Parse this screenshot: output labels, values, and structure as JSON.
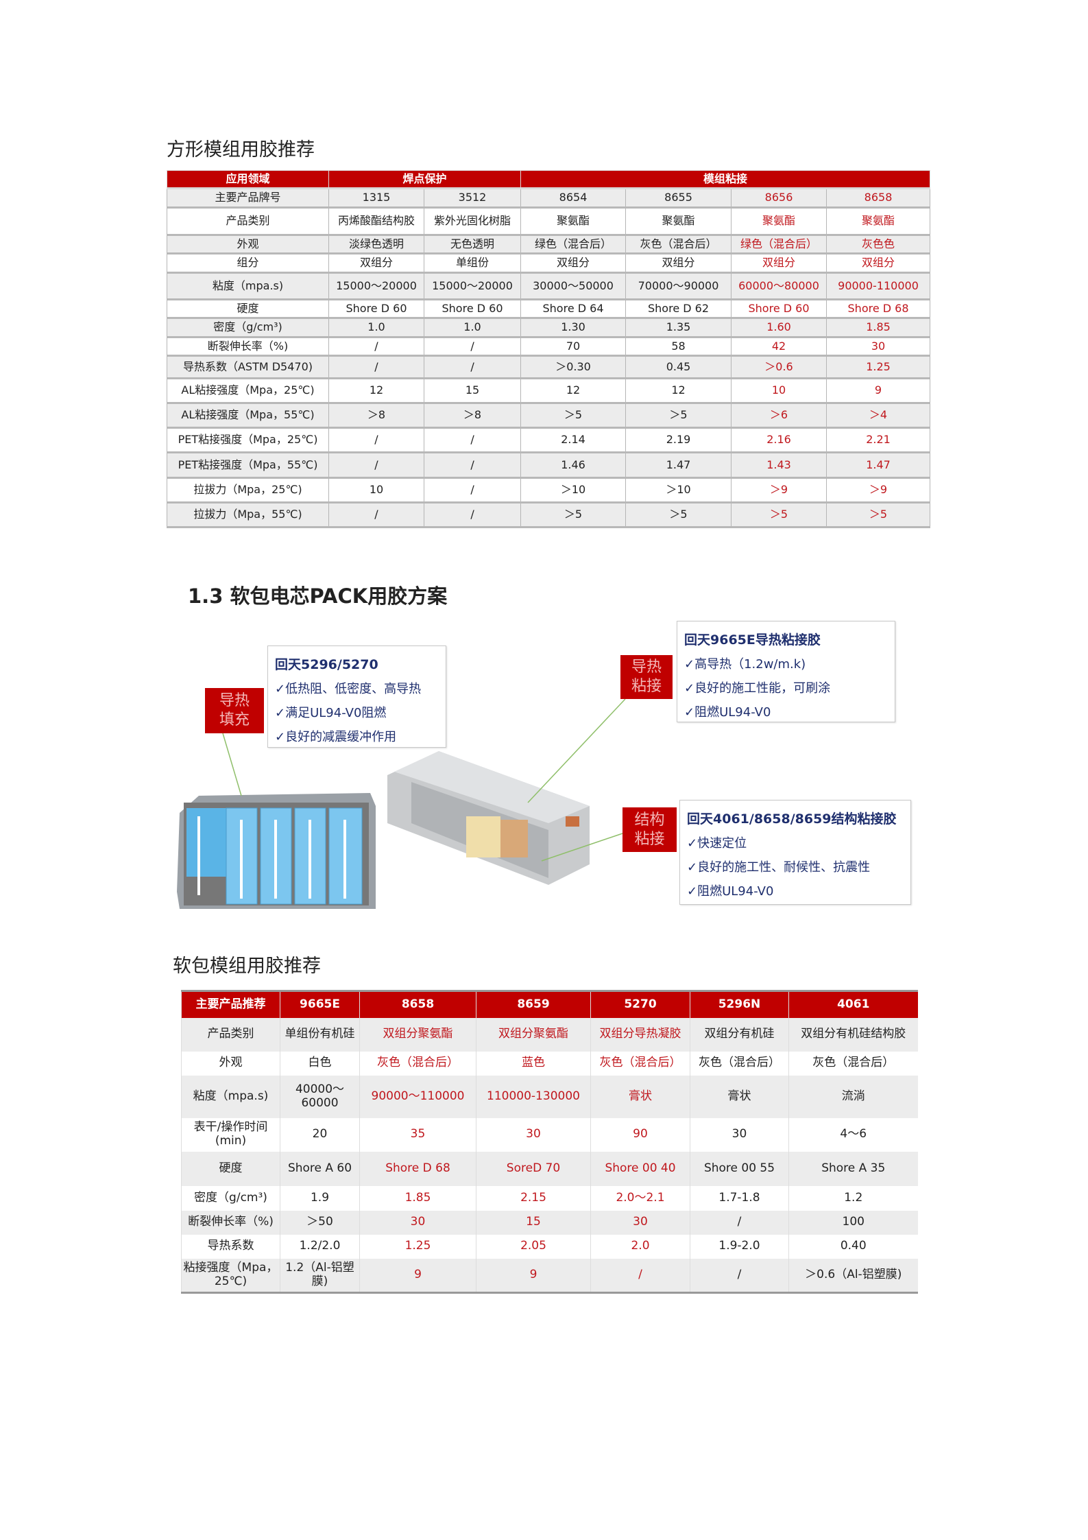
{
  "colors": {
    "brand_red": "#c00000",
    "highlight_text": "#c0171d",
    "callout_text": "#1f2f6e",
    "leader_line": "#8fbf6a"
  },
  "section1": {
    "title": "方形模组用胶推荐",
    "table": {
      "header": [
        {
          "label": "应用领域",
          "span": 1
        },
        {
          "label": "焊点保护",
          "span": 2
        },
        {
          "label": "模组粘接",
          "span": 4
        }
      ],
      "highlight_columns": [
        5,
        6
      ],
      "rows": [
        [
          "主要产品牌号",
          "1315",
          "3512",
          "8654",
          "8655",
          "8656",
          "8658"
        ],
        [
          "产品类别",
          "丙烯酸酯结构胶",
          "紫外光固化树脂",
          "聚氨酯",
          "聚氨酯",
          "聚氨酯",
          "聚氨酯"
        ],
        [
          "外观",
          "淡绿色透明",
          "无色透明",
          "绿色（混合后）",
          "灰色（混合后）",
          "绿色（混合后）",
          "灰色色"
        ],
        [
          "组分",
          "双组分",
          "单组份",
          "双组分",
          "双组分",
          "双组分",
          "双组分"
        ],
        [
          "粘度（mpa.s)",
          "15000～20000",
          "15000～20000",
          "30000～50000",
          "70000～90000",
          "60000～80000",
          "90000-110000"
        ],
        [
          "硬度",
          "Shore D 60",
          "Shore D 60",
          "Shore D 64",
          "Shore D 62",
          "Shore D 60",
          "Shore D 68"
        ],
        [
          "密度（g/cm³)",
          "1.0",
          "1.0",
          "1.30",
          "1.35",
          "1.60",
          "1.85"
        ],
        [
          "断裂伸长率（%)",
          "/",
          "/",
          "70",
          "58",
          "42",
          "30"
        ],
        [
          "导热系数（ASTM D5470)",
          "/",
          "/",
          "＞0.30",
          "0.45",
          "＞0.6",
          "1.25"
        ],
        [
          "AL粘接强度（Mpa，25℃)",
          "12",
          "15",
          "12",
          "12",
          "10",
          "9"
        ],
        [
          "AL粘接强度（Mpa，55℃)",
          "＞8",
          "＞8",
          "＞5",
          "＞5",
          "＞6",
          "＞4"
        ],
        [
          "PET粘接强度（Mpa，25℃)",
          "/",
          "/",
          "2.14",
          "2.19",
          "2.16",
          "2.21"
        ],
        [
          "PET粘接强度（Mpa，55℃)",
          "/",
          "/",
          "1.46",
          "1.47",
          "1.43",
          "1.47"
        ],
        [
          "拉拔力（Mpa，25℃)",
          "10",
          "/",
          "＞10",
          "＞10",
          "＞9",
          "＞9"
        ],
        [
          "拉拔力（Mpa，55℃)",
          "/",
          "/",
          "＞5",
          "＞5",
          "＞5",
          "＞5"
        ]
      ]
    }
  },
  "section2": {
    "title": "1.3 软包电芯PACK用胶方案",
    "tags": {
      "fill": "导热\n填充",
      "thermal_bond": "导热\n粘接",
      "structural": "结构\n粘接"
    },
    "callouts": [
      {
        "title": "回天5296/5270",
        "items": [
          "✓低热阻、低密度、高导热",
          "✓满足UL94-V0阻燃",
          "✓良好的减震缓冲作用"
        ]
      },
      {
        "title": "回天9665E导热粘接胶",
        "items": [
          "✓高导热（1.2w/m.k)",
          "✓良好的施工性能，可刷涂",
          "✓阻燃UL94-V0"
        ]
      },
      {
        "title": "回天4061/8658/8659结构粘接胶",
        "items": [
          "✓快速定位",
          "✓良好的施工性、耐候性、抗震性",
          "✓阻燃UL94-V0"
        ]
      }
    ]
  },
  "section3": {
    "title": "软包模组用胶推荐",
    "table": {
      "header": [
        "主要产品推荐",
        "9665E",
        "8658",
        "8659",
        "5270",
        "5296N",
        "4061"
      ],
      "highlight_columns": [
        2,
        3,
        4
      ],
      "rows": [
        [
          "产品类别",
          "单组份有机硅",
          "双组分聚氨酯",
          "双组分聚氨酯",
          "双组分导热凝胶",
          "双组分有机硅",
          "双组分有机硅结构胶"
        ],
        [
          "外观",
          "白色",
          "灰色（混合后）",
          "蓝色",
          "灰色（混合后）",
          "灰色（混合后）",
          "灰色（混合后）"
        ],
        [
          "粘度（mpa.s)",
          "40000～60000",
          "90000～110000",
          "110000-130000",
          "膏状",
          "膏状",
          "流淌"
        ],
        [
          "表干/操作时间(min)",
          "20",
          "35",
          "30",
          "90",
          "30",
          "4～6"
        ],
        [
          "硬度",
          "Shore A 60",
          "Shore D 68",
          "SoreD 70",
          "Shore 00 40",
          "Shore 00 55",
          "Shore A 35"
        ],
        [
          "密度（g/cm³)",
          "1.9",
          "1.85",
          "2.15",
          "2.0～2.1",
          "1.7-1.8",
          "1.2"
        ],
        [
          "断裂伸长率（%)",
          "＞50",
          "30",
          "15",
          "30",
          "/",
          "100"
        ],
        [
          "导热系数",
          "1.2/2.0",
          "1.25",
          "2.05",
          "2.0",
          "1.9-2.0",
          "0.40"
        ],
        [
          "粘接强度（Mpa，25℃)",
          "1.2（Al-铝塑膜)",
          "9",
          "9",
          "/",
          "/",
          "＞0.6（Al-铝塑膜)"
        ]
      ]
    }
  }
}
